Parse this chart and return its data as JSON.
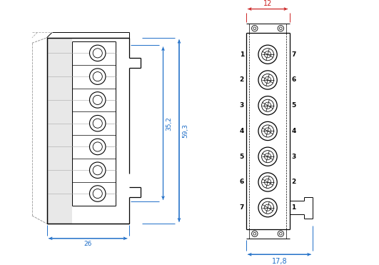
{
  "bg_color": "#ffffff",
  "lc": "#000000",
  "dc": "#1e6ec8",
  "gc": "#aaaaaa",
  "dim_red": "#cc2222",
  "fig_width": 5.31,
  "fig_height": 3.71,
  "dpi": 100,
  "dim_35_2": "35,2",
  "dim_59_3": "59,3",
  "dim_26": "26",
  "dim_12": "12",
  "dim_17_8": "17,8",
  "labels_left": [
    "1",
    "2",
    "3",
    "4",
    "5",
    "6",
    "7"
  ],
  "labels_right": [
    "7",
    "6",
    "5",
    "4",
    "3",
    "2",
    "1"
  ]
}
